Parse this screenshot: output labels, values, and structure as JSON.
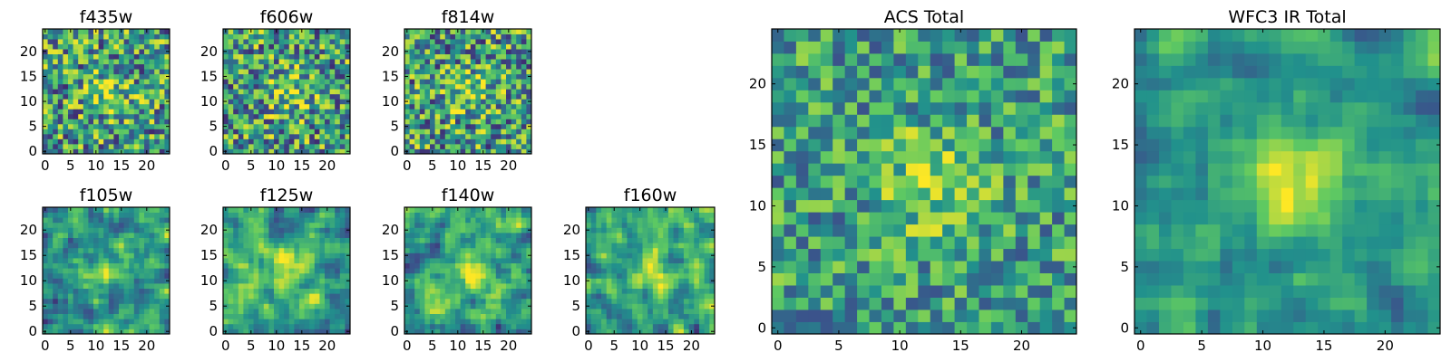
{
  "chart_data": [
    {
      "type": "heatmap",
      "title": "f435w",
      "grid_size": 25,
      "seed": 11,
      "noise": 0.85,
      "smooth": 0,
      "peak": 0.5,
      "xticks": [
        "0",
        "5",
        "10",
        "15",
        "20"
      ],
      "yticks": [
        "0",
        "5",
        "10",
        "15",
        "20"
      ],
      "xlim": [
        0,
        25
      ],
      "ylim": [
        0,
        25
      ]
    },
    {
      "type": "heatmap",
      "title": "f606w",
      "grid_size": 25,
      "seed": 23,
      "noise": 0.85,
      "smooth": 0,
      "peak": 0.5,
      "xticks": [
        "0",
        "5",
        "10",
        "15",
        "20"
      ],
      "yticks": [
        "0",
        "5",
        "10",
        "15",
        "20"
      ],
      "xlim": [
        0,
        25
      ],
      "ylim": [
        0,
        25
      ]
    },
    {
      "type": "heatmap",
      "title": "f814w",
      "grid_size": 25,
      "seed": 37,
      "noise": 0.85,
      "smooth": 0,
      "peak": 0.5,
      "xticks": [
        "0",
        "5",
        "10",
        "15",
        "20"
      ],
      "yticks": [
        "0",
        "5",
        "10",
        "15",
        "20"
      ],
      "xlim": [
        0,
        25
      ],
      "ylim": [
        0,
        25
      ]
    },
    {
      "type": "heatmap",
      "title": "f105w",
      "grid_size": 25,
      "seed": 41,
      "noise": 0.8,
      "smooth": 1,
      "peak": 0.6,
      "xticks": [
        "0",
        "5",
        "10",
        "15",
        "20"
      ],
      "yticks": [
        "0",
        "5",
        "10",
        "15",
        "20"
      ],
      "xlim": [
        0,
        25
      ],
      "ylim": [
        0,
        25
      ]
    },
    {
      "type": "heatmap",
      "title": "f125w",
      "grid_size": 25,
      "seed": 53,
      "noise": 0.8,
      "smooth": 1,
      "peak": 0.6,
      "xticks": [
        "0",
        "5",
        "10",
        "15",
        "20"
      ],
      "yticks": [
        "0",
        "5",
        "10",
        "15",
        "20"
      ],
      "xlim": [
        0,
        25
      ],
      "ylim": [
        0,
        25
      ]
    },
    {
      "type": "heatmap",
      "title": "f140w",
      "grid_size": 25,
      "seed": 67,
      "noise": 0.8,
      "smooth": 1,
      "peak": 0.6,
      "xticks": [
        "0",
        "5",
        "10",
        "15",
        "20"
      ],
      "yticks": [
        "0",
        "5",
        "10",
        "15",
        "20"
      ],
      "xlim": [
        0,
        25
      ],
      "ylim": [
        0,
        25
      ]
    },
    {
      "type": "heatmap",
      "title": "f160w",
      "grid_size": 25,
      "seed": 79,
      "noise": 0.8,
      "smooth": 1,
      "peak": 0.65,
      "xticks": [
        "0",
        "5",
        "10",
        "15",
        "20"
      ],
      "yticks": [
        "0",
        "5",
        "10",
        "15",
        "20"
      ],
      "xlim": [
        0,
        25
      ],
      "ylim": [
        0,
        25
      ]
    },
    {
      "type": "heatmap",
      "title": "ACS Total",
      "grid_size": 25,
      "seed": 97,
      "noise": 0.6,
      "smooth": 0,
      "peak": 0.55,
      "xticks": [
        "0",
        "5",
        "10",
        "15",
        "20"
      ],
      "yticks": [
        "0",
        "5",
        "10",
        "15",
        "20"
      ],
      "xlim": [
        0,
        25
      ],
      "ylim": [
        0,
        25
      ]
    },
    {
      "type": "heatmap",
      "title": "WFC3 IR Total",
      "grid_size": 25,
      "seed": 113,
      "noise": 0.55,
      "smooth": 1,
      "peak": 0.8,
      "xticks": [
        "0",
        "5",
        "10",
        "15",
        "20"
      ],
      "yticks": [
        "0",
        "5",
        "10",
        "15",
        "20"
      ],
      "xlim": [
        0,
        25
      ],
      "ylim": [
        0,
        25
      ]
    }
  ],
  "colormap": {
    "name": "viridis",
    "stops": [
      "#440154",
      "#3b528b",
      "#21918c",
      "#5ec962",
      "#fde725"
    ]
  }
}
